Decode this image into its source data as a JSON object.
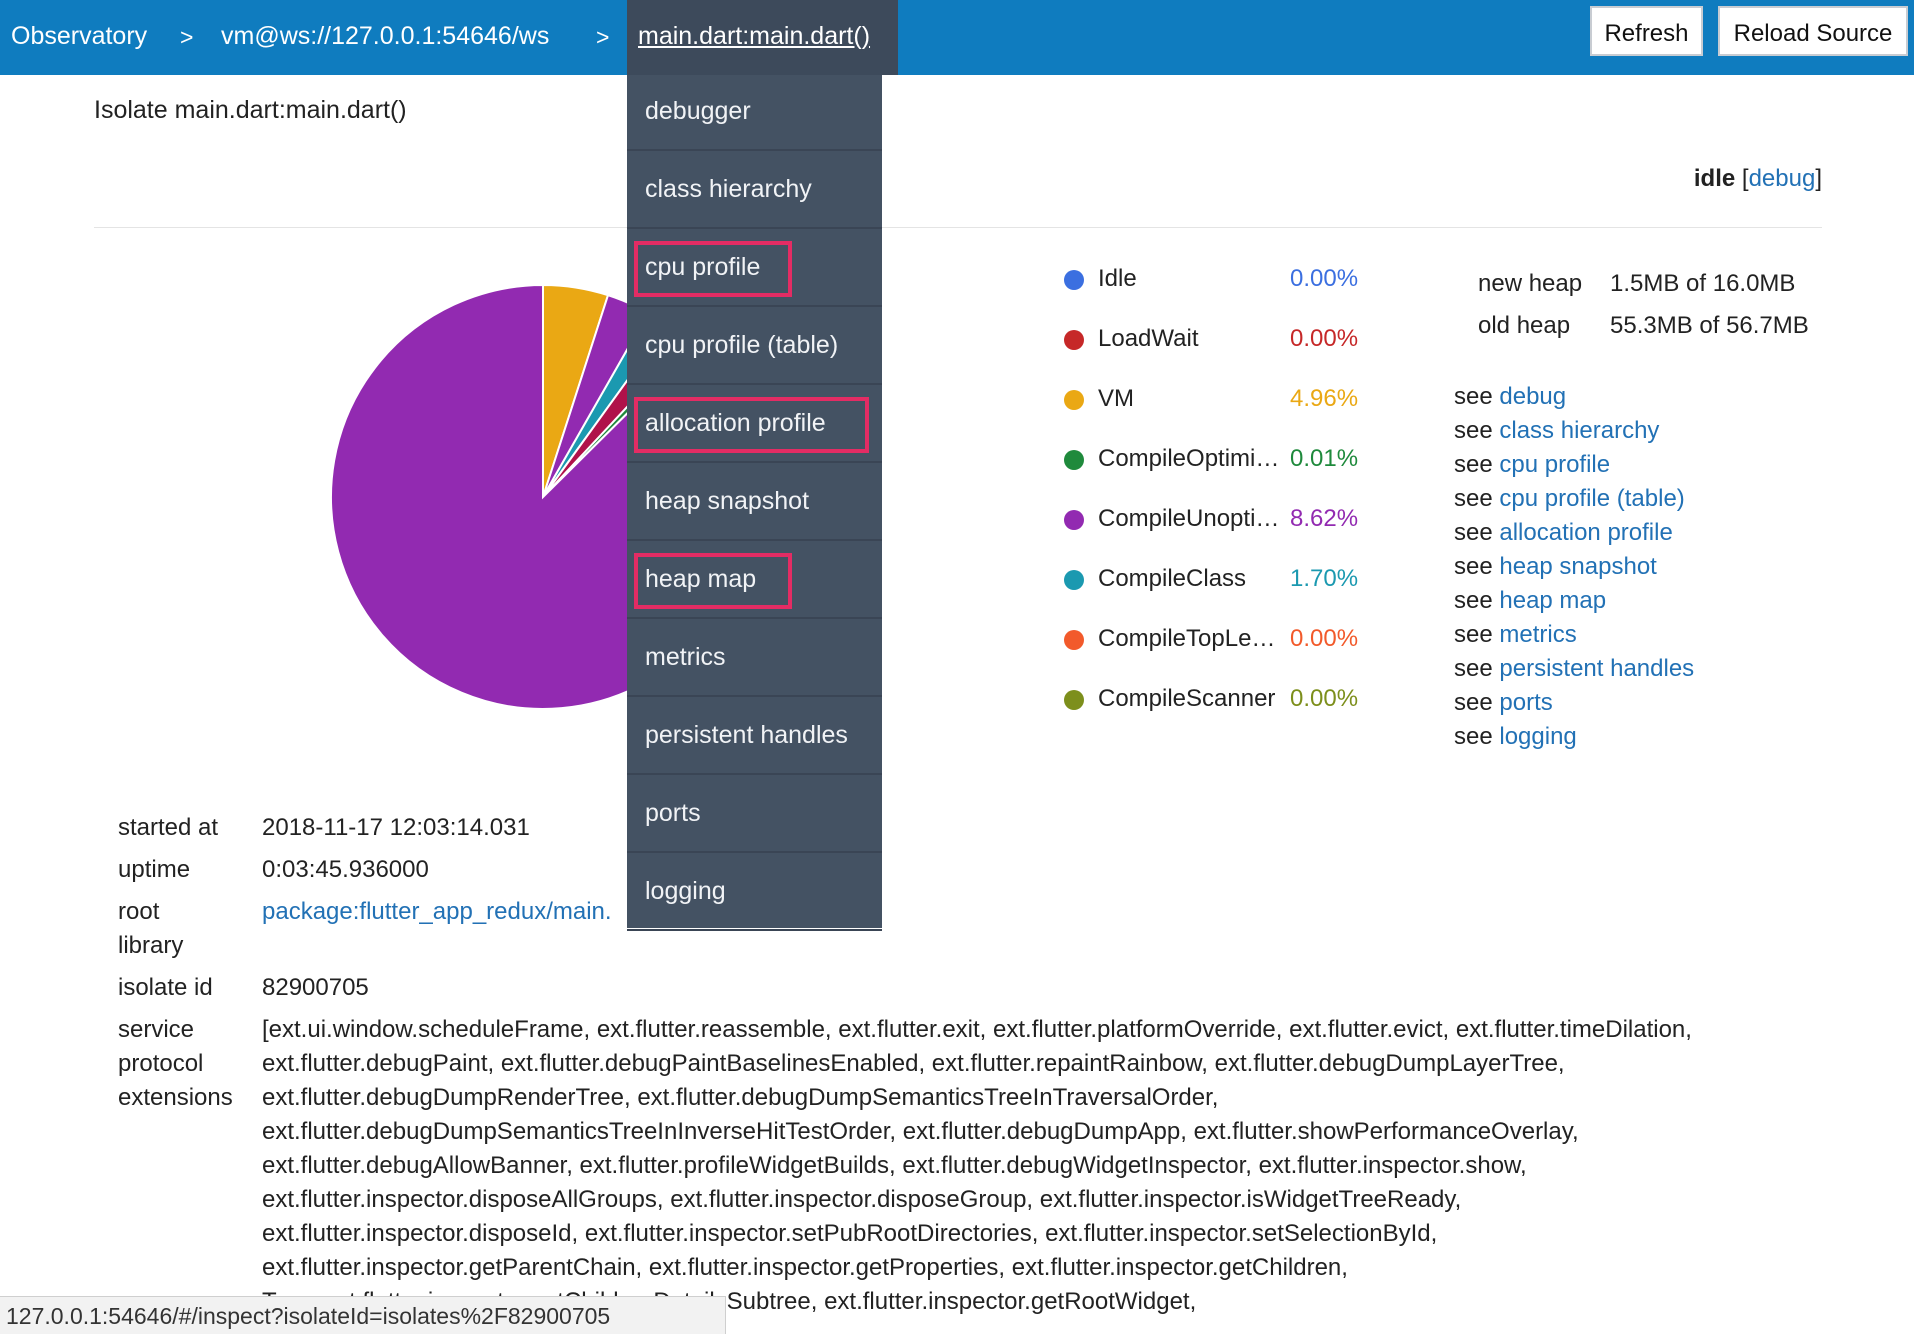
{
  "topbar": {
    "crumbs": [
      "Observatory",
      "vm@ws://127.0.0.1:54646/ws",
      "main.dart:main.dart()"
    ],
    "separator": ">",
    "buttons": {
      "refresh": "Refresh",
      "reload": "Reload Source"
    }
  },
  "menu": {
    "items": [
      "debugger",
      "class hierarchy",
      "cpu profile",
      "cpu profile (table)",
      "allocation profile",
      "heap snapshot",
      "heap map",
      "metrics",
      "persistent handles",
      "ports",
      "logging"
    ],
    "highlighted": [
      "cpu profile",
      "allocation profile",
      "heap map"
    ],
    "highlight_color": "#e42c64"
  },
  "isolate": {
    "title": "Isolate main.dart:main.dart()",
    "state": "idle",
    "debug_link": "debug"
  },
  "chart_data": {
    "type": "pie",
    "labels": [
      "Idle",
      "LoadWait",
      "VM",
      "CompileOptimized",
      "CompileUnoptimized",
      "CompileClass",
      "CompileTopLevel",
      "CompileScanner"
    ],
    "values": [
      0.0,
      0.0,
      4.96,
      0.01,
      8.62,
      1.7,
      0.0,
      0.0
    ]
  },
  "legend": [
    {
      "name": "Idle",
      "value": "0.00%",
      "color": "#3b6fe0"
    },
    {
      "name": "LoadWait",
      "value": "0.00%",
      "color": "#c62828"
    },
    {
      "name": "VM",
      "value": "4.96%",
      "color": "#eaa814"
    },
    {
      "name": "CompileOptimi…",
      "value": "0.01%",
      "color": "#1f8a3c"
    },
    {
      "name": "CompileUnopti…",
      "value": "8.62%",
      "color": "#922ab1"
    },
    {
      "name": "CompileClass",
      "value": "1.70%",
      "color": "#1b99b0"
    },
    {
      "name": "CompileTopLe…",
      "value": "0.00%",
      "color": "#f25a2b"
    },
    {
      "name": "CompileScanner",
      "value": "0.00%",
      "color": "#7d8f1c"
    }
  ],
  "pie_colors": {
    "unopt": "#922ab1",
    "vm": "#eaa814",
    "class": "#1b99b0",
    "extra": "#b0124a",
    "opt": "#1f8a3c"
  },
  "heap": {
    "new_label": "new heap",
    "new_value": "1.5MB of 16.0MB",
    "old_label": "old heap",
    "old_value": "55.3MB of 56.7MB"
  },
  "see": {
    "prefix": "see",
    "links": [
      "debug",
      "class hierarchy",
      "cpu profile",
      "cpu profile (table)",
      "allocation profile",
      "heap snapshot",
      "heap map",
      "metrics",
      "persistent handles",
      "ports",
      "logging"
    ]
  },
  "props": {
    "started_label": "started at",
    "started_value": "2018-11-17 12:03:14.031",
    "uptime_label": "uptime",
    "uptime_value": "0:03:45.936000",
    "root_label": "root\nlibrary",
    "root_value": "package:flutter_app_redux/main.",
    "isolate_label": "isolate id",
    "isolate_value": "82900705",
    "ext_label": "service\nprotocol\nextensions",
    "ext_value": "[ext.ui.window.scheduleFrame, ext.flutter.reassemble, ext.flutter.exit, ext.flutter.platformOverride, ext.flutter.evict, ext.flutter.timeDilation,\next.flutter.debugPaint, ext.flutter.debugPaintBaselinesEnabled, ext.flutter.repaintRainbow, ext.flutter.debugDumpLayerTree,\next.flutter.debugDumpRenderTree, ext.flutter.debugDumpSemanticsTreeInTraversalOrder,\next.flutter.debugDumpSemanticsTreeInInverseHitTestOrder, ext.flutter.debugDumpApp, ext.flutter.showPerformanceOverlay,\next.flutter.debugAllowBanner, ext.flutter.profileWidgetBuilds, ext.flutter.debugWidgetInspector, ext.flutter.inspector.show,\next.flutter.inspector.disposeAllGroups, ext.flutter.inspector.disposeGroup, ext.flutter.inspector.isWidgetTreeReady,\next.flutter.inspector.disposeId, ext.flutter.inspector.setPubRootDirectories, ext.flutter.inspector.setSelectionById,\next.flutter.inspector.getParentChain, ext.flutter.inspector.getProperties, ext.flutter.inspector.getChildren,\n                                                    Tree, ext.flutter.inspector.getChildrenDetailsSubtree, ext.flutter.inspector.getRootWidget,"
  },
  "statusbar": {
    "url": "127.0.0.1:54646/#/inspect?isolateId=isolates%2F82900705"
  }
}
